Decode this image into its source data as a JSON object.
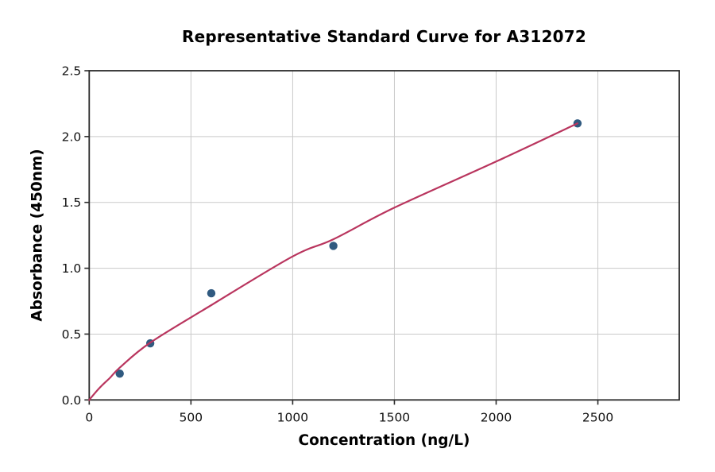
{
  "page": {
    "background": "#ffffff"
  },
  "chart_data": {
    "type": "scatter",
    "title": "Representative Standard Curve for A312072",
    "xlabel": "Concentration (ng/L)",
    "ylabel": "Absorbance (450nm)",
    "xlim": [
      0,
      2900
    ],
    "ylim": [
      0,
      2.5
    ],
    "x_ticks": [
      0,
      500,
      1000,
      1500,
      2000,
      2500
    ],
    "x_tick_labels": [
      "0",
      "500",
      "1000",
      "1500",
      "2000",
      "2500"
    ],
    "y_ticks": [
      0.0,
      0.5,
      1.0,
      1.5,
      2.0,
      2.5
    ],
    "y_tick_labels": [
      "0.0",
      "0.5",
      "1.0",
      "1.5",
      "2.0",
      "2.5"
    ],
    "grid": true,
    "legend_position": "none",
    "series": [
      {
        "name": "standard-points",
        "type": "scatter",
        "x": [
          150,
          300,
          600,
          1200,
          2400
        ],
        "y": [
          0.2,
          0.43,
          0.81,
          1.17,
          2.1
        ],
        "color": "#305a80",
        "marker": "circle",
        "marker_radius": 5.2
      },
      {
        "name": "fit-curve",
        "type": "line",
        "x": [
          0,
          50,
          100,
          150,
          300,
          600,
          1000,
          1200,
          1500,
          2000,
          2400
        ],
        "y": [
          0.0,
          0.09,
          0.165,
          0.245,
          0.435,
          0.72,
          1.09,
          1.22,
          1.46,
          1.81,
          2.1
        ],
        "color": "#b9355e",
        "line_width": 2.2
      }
    ],
    "colors": {
      "grid": "#c9c9c9",
      "spine": "#2b2b2b",
      "tick_mark": "#2b2b2b",
      "tick_label": "#111111",
      "background": "#ffffff"
    }
  }
}
